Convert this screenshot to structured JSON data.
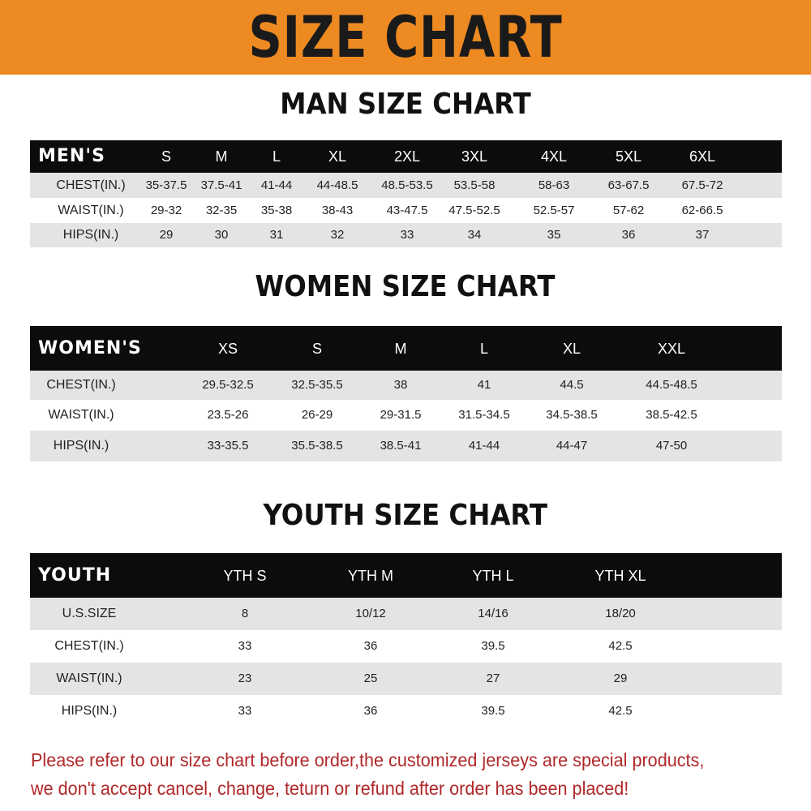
{
  "banner_title": "SIZE CHART",
  "accent_color": "#ee8a22",
  "tables": [
    {
      "title": "MAN SIZE CHART",
      "header_label": "MEN'S",
      "sizes": [
        "S",
        "M",
        "L",
        "XL",
        "2XL",
        "3XL",
        "4XL",
        "5XL",
        "6XL"
      ],
      "rows": [
        {
          "label": "CHEST(IN.)",
          "values": [
            "35-37.5",
            "37.5-41",
            "41-44",
            "44-48.5",
            "48.5-53.5",
            "53.5-58",
            "58-63",
            "63-67.5",
            "67.5-72"
          ]
        },
        {
          "label": "WAIST(IN.)",
          "values": [
            "29-32",
            "32-35",
            "35-38",
            "38-43",
            "43-47.5",
            "47.5-52.5",
            "52.5-57",
            "57-62",
            "62-66.5"
          ]
        },
        {
          "label": "HIPS(IN.)",
          "values": [
            "29",
            "30",
            "31",
            "32",
            "33",
            "34",
            "35",
            "36",
            "37"
          ]
        }
      ]
    },
    {
      "title": "WOMEN SIZE CHART",
      "header_label": "WOMEN'S",
      "sizes": [
        "XS",
        "S",
        "M",
        "L",
        "XL",
        "XXL"
      ],
      "rows": [
        {
          "label": "CHEST(IN.)",
          "values": [
            "29.5-32.5",
            "32.5-35.5",
            "38",
            "41",
            "44.5",
            "44.5-48.5"
          ]
        },
        {
          "label": "WAIST(IN.)",
          "values": [
            "23.5-26",
            "26-29",
            "29-31.5",
            "31.5-34.5",
            "34.5-38.5",
            "38.5-42.5"
          ]
        },
        {
          "label": "HIPS(IN.)",
          "values": [
            "33-35.5",
            "35.5-38.5",
            "38.5-41",
            "41-44",
            "44-47",
            "47-50"
          ]
        }
      ]
    },
    {
      "title": "YOUTH SIZE CHART",
      "header_label": "YOUTH",
      "sizes": [
        "YTH S",
        "YTH M",
        "YTH L",
        "YTH XL"
      ],
      "rows": [
        {
          "label": "U.S.SIZE",
          "values": [
            "8",
            "10/12",
            "14/16",
            "18/20"
          ]
        },
        {
          "label": "CHEST(IN.)",
          "values": [
            "33",
            "36",
            "39.5",
            "42.5"
          ]
        },
        {
          "label": "WAIST(IN.)",
          "values": [
            "23",
            "25",
            "27",
            "29"
          ]
        },
        {
          "label": "HIPS(IN.)",
          "values": [
            "33",
            "36",
            "39.5",
            "42.5"
          ]
        }
      ]
    }
  ],
  "notice": {
    "line1": "Please refer to our size chart before order,the customized jerseys are special products,",
    "line2": "we don't accept cancel, change, teturn or refund after order has been placed!"
  }
}
